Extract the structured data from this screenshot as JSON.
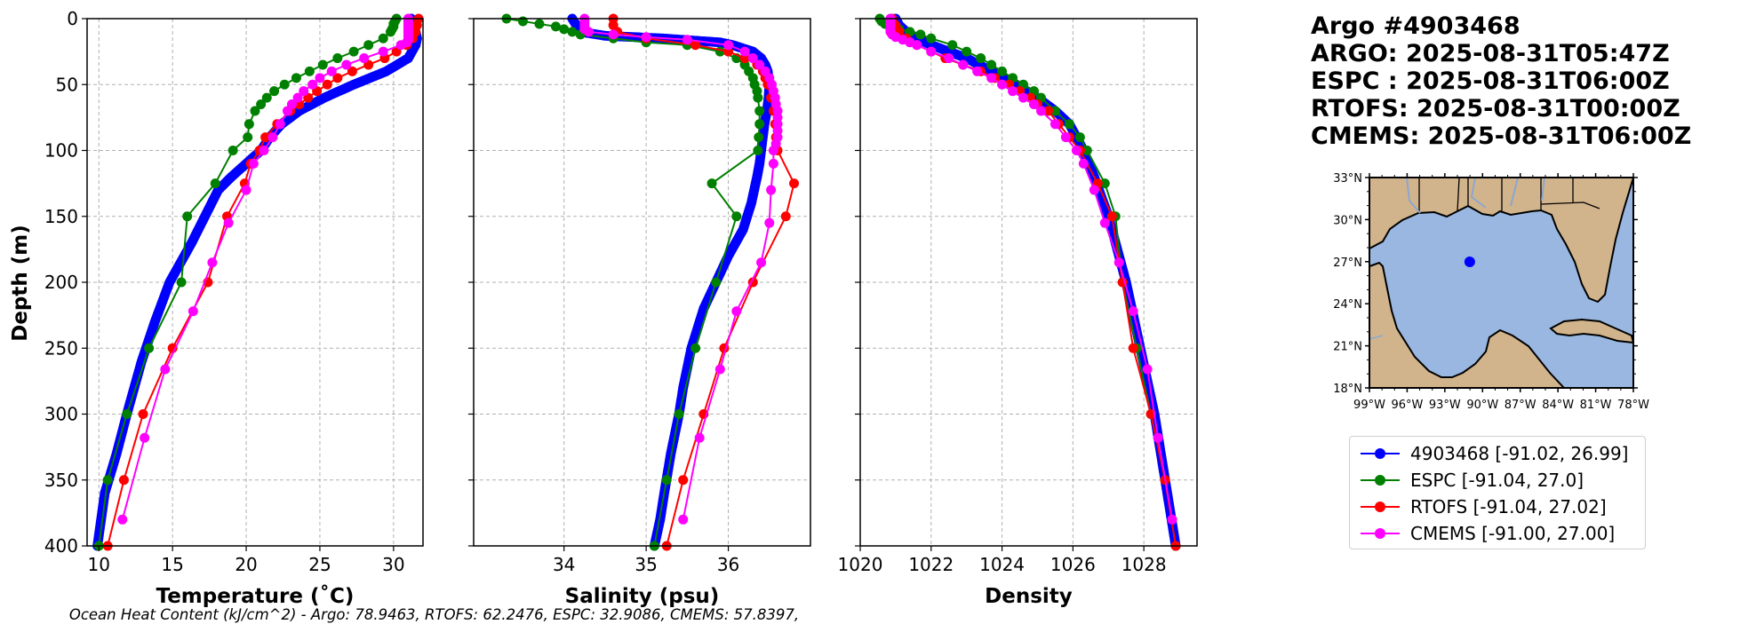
{
  "info": {
    "title": "Argo #4903468",
    "lines": [
      "ARGO: 2025-08-31T05:47Z",
      "ESPC : 2025-08-31T06:00Z",
      "RTOFS: 2025-08-31T00:00Z",
      "CMEMS: 2025-08-31T06:00Z"
    ]
  },
  "footer": {
    "text": "Ocean Heat Content (kJ/cm^2) - Argo: 78.9463,  RTOFS: 62.2476,  ESPC: 32.9086,  CMEMS: 57.8397,"
  },
  "legend": {
    "entries": [
      {
        "label": "4903468 [-91.02, 26.99]",
        "color": "#0000ff"
      },
      {
        "label": "ESPC [-91.04, 27.0]",
        "color": "#008000"
      },
      {
        "label": "RTOFS [-91.04, 27.02]",
        "color": "#ff0000"
      },
      {
        "label": "CMEMS [-91.00, 27.00]",
        "color": "#ff00ff"
      }
    ]
  },
  "chart_data": [
    {
      "type": "line",
      "title": "",
      "xlabel": "Temperature (˚C)",
      "ylabel": "Depth (m)",
      "xlim": [
        9.2,
        32.0
      ],
      "ylim": [
        400,
        0
      ],
      "xticks": [
        10,
        15,
        20,
        25,
        30
      ],
      "yticks": [
        0,
        50,
        100,
        150,
        200,
        250,
        300,
        350,
        400
      ],
      "grid": true,
      "series": [
        {
          "name": "4903468",
          "color": "#0000ff",
          "dense": true,
          "depth": [
            0,
            10,
            15,
            20,
            30,
            40,
            50,
            60,
            70,
            80,
            90,
            100,
            110,
            120,
            130,
            150,
            170,
            200,
            230,
            260,
            300,
            330,
            360,
            400
          ],
          "values": [
            31.2,
            31.5,
            31.6,
            31.5,
            31.0,
            29.5,
            27.3,
            25.3,
            23.6,
            22.4,
            21.6,
            21.0,
            20.0,
            19.0,
            18.1,
            17.2,
            16.3,
            14.8,
            13.8,
            12.9,
            11.9,
            11.2,
            10.4,
            9.9
          ]
        },
        {
          "name": "ESPC",
          "color": "#008000",
          "depth": [
            0,
            2,
            4,
            6,
            8,
            10,
            15,
            20,
            25,
            30,
            35,
            40,
            45,
            50,
            55,
            60,
            65,
            70,
            80,
            90,
            100,
            125,
            150,
            200,
            250,
            300,
            350,
            400
          ],
          "values": [
            30.2,
            30.1,
            30.0,
            30.0,
            29.9,
            29.8,
            29.3,
            28.3,
            27.3,
            26.2,
            25.2,
            24.3,
            23.4,
            22.6,
            21.9,
            21.4,
            21.0,
            20.6,
            20.2,
            20.1,
            19.1,
            17.9,
            16.0,
            15.6,
            13.4,
            11.9,
            10.6,
            10.0
          ]
        },
        {
          "name": "RTOFS",
          "color": "#ff0000",
          "depth": [
            0,
            5,
            10,
            15,
            20,
            25,
            30,
            35,
            40,
            45,
            50,
            55,
            60,
            65,
            70,
            80,
            90,
            100,
            110,
            125,
            150,
            200,
            250,
            300,
            350,
            400
          ],
          "values": [
            31.7,
            31.6,
            31.5,
            31.3,
            30.9,
            30.2,
            29.4,
            28.3,
            27.2,
            26.2,
            25.5,
            24.8,
            24.2,
            23.6,
            23.0,
            22.1,
            21.3,
            20.9,
            20.3,
            19.9,
            18.7,
            17.4,
            15.0,
            13.0,
            11.7,
            10.6
          ]
        },
        {
          "name": "CMEMS",
          "color": "#ff00ff",
          "depth": [
            0,
            2,
            4,
            6,
            8,
            10,
            12,
            14,
            16,
            18,
            20,
            25,
            30,
            35,
            40,
            45,
            50,
            55,
            60,
            65,
            70,
            80,
            90,
            100,
            110,
            130,
            155,
            185,
            222,
            266,
            318,
            380
          ],
          "values": [
            31.0,
            31.0,
            31.0,
            31.0,
            31.0,
            31.0,
            31.0,
            31.0,
            31.0,
            30.9,
            30.5,
            29.3,
            28.0,
            26.8,
            25.8,
            25.0,
            24.5,
            23.9,
            23.5,
            23.1,
            22.8,
            22.3,
            21.8,
            21.2,
            20.5,
            20.0,
            18.8,
            17.7,
            16.4,
            14.5,
            13.1,
            11.6
          ]
        }
      ]
    },
    {
      "type": "line",
      "title": "",
      "xlabel": "Salinity (psu)",
      "ylabel": "",
      "xlim": [
        32.9,
        37.0
      ],
      "ylim": [
        400,
        0
      ],
      "xticks": [
        34,
        35,
        36
      ],
      "yticks": [
        0,
        50,
        100,
        150,
        200,
        250,
        300,
        350,
        400
      ],
      "grid": true,
      "series": [
        {
          "name": "4903468",
          "color": "#0000ff",
          "dense": true,
          "depth": [
            0,
            5,
            10,
            13,
            15,
            18,
            20,
            25,
            30,
            35,
            40,
            50,
            60,
            70,
            80,
            90,
            100,
            110,
            120,
            140,
            160,
            180,
            200,
            220,
            250,
            280,
            300,
            330,
            360,
            380,
            400
          ],
          "values": [
            34.1,
            34.15,
            34.2,
            34.5,
            35.2,
            35.9,
            36.05,
            36.3,
            36.4,
            36.45,
            36.48,
            36.5,
            36.49,
            36.47,
            36.44,
            36.42,
            36.4,
            36.38,
            36.35,
            36.28,
            36.18,
            36.0,
            35.85,
            35.7,
            35.55,
            35.45,
            35.4,
            35.3,
            35.22,
            35.17,
            35.1
          ]
        },
        {
          "name": "ESPC",
          "color": "#008000",
          "depth": [
            0,
            2,
            4,
            6,
            8,
            10,
            12,
            15,
            18,
            20,
            25,
            30,
            35,
            40,
            45,
            50,
            55,
            60,
            70,
            80,
            90,
            100,
            125,
            150,
            200,
            250,
            300,
            350,
            400
          ],
          "values": [
            33.3,
            33.5,
            33.7,
            33.9,
            34.0,
            34.1,
            34.2,
            34.6,
            35.0,
            35.5,
            35.9,
            36.1,
            36.2,
            36.25,
            36.3,
            36.32,
            36.35,
            36.36,
            36.38,
            36.38,
            36.37,
            36.36,
            35.8,
            36.1,
            35.85,
            35.6,
            35.4,
            35.25,
            35.1
          ]
        },
        {
          "name": "RTOFS",
          "color": "#ff0000",
          "depth": [
            0,
            5,
            10,
            15,
            20,
            25,
            30,
            35,
            40,
            45,
            50,
            60,
            70,
            80,
            90,
            100,
            125,
            150,
            200,
            250,
            300,
            350,
            400
          ],
          "values": [
            34.6,
            34.6,
            34.65,
            35.0,
            35.6,
            36.0,
            36.2,
            36.35,
            36.42,
            36.45,
            36.48,
            36.52,
            36.55,
            36.57,
            36.58,
            36.6,
            36.8,
            36.7,
            36.3,
            35.95,
            35.7,
            35.45,
            35.25
          ]
        },
        {
          "name": "CMEMS",
          "color": "#ff00ff",
          "depth": [
            0,
            2,
            4,
            6,
            8,
            10,
            12,
            14,
            16,
            20,
            25,
            30,
            35,
            40,
            45,
            50,
            55,
            60,
            65,
            70,
            75,
            80,
            85,
            90,
            95,
            100,
            110,
            130,
            155,
            185,
            222,
            266,
            318,
            380
          ],
          "values": [
            34.25,
            34.25,
            34.25,
            34.25,
            34.25,
            34.3,
            34.6,
            35.0,
            35.5,
            36.0,
            36.2,
            36.3,
            36.38,
            36.45,
            36.5,
            36.53,
            36.55,
            36.57,
            36.58,
            36.6,
            36.6,
            36.6,
            36.6,
            36.6,
            36.58,
            36.55,
            36.55,
            36.52,
            36.5,
            36.4,
            36.1,
            35.9,
            35.65,
            35.45
          ]
        }
      ]
    },
    {
      "type": "line",
      "title": "",
      "xlabel": "Density",
      "ylabel": "",
      "xlim": [
        1020.0,
        1029.5
      ],
      "ylim": [
        400,
        0
      ],
      "xticks": [
        1020,
        1022,
        1024,
        1026,
        1028
      ],
      "yticks": [
        0,
        50,
        100,
        150,
        200,
        250,
        300,
        350,
        400
      ],
      "grid": true,
      "series": [
        {
          "name": "4903468",
          "color": "#0000ff",
          "dense": true,
          "depth": [
            0,
            5,
            10,
            15,
            20,
            25,
            30,
            40,
            50,
            60,
            70,
            80,
            90,
            100,
            120,
            150,
            180,
            200,
            250,
            300,
            350,
            400
          ],
          "values": [
            1021.0,
            1021.1,
            1021.3,
            1021.6,
            1022.0,
            1022.5,
            1023.0,
            1023.7,
            1024.4,
            1025.0,
            1025.5,
            1025.9,
            1026.1,
            1026.3,
            1026.6,
            1027.0,
            1027.3,
            1027.5,
            1027.9,
            1028.3,
            1028.6,
            1028.9
          ]
        },
        {
          "name": "ESPC",
          "color": "#008000",
          "depth": [
            0,
            2,
            4,
            6,
            8,
            10,
            12,
            15,
            20,
            25,
            30,
            35,
            40,
            45,
            50,
            55,
            60,
            70,
            80,
            90,
            100,
            125,
            150,
            200,
            250,
            300,
            350,
            400
          ],
          "values": [
            1020.55,
            1020.6,
            1020.7,
            1020.9,
            1021.1,
            1021.4,
            1021.7,
            1022.0,
            1022.6,
            1023.0,
            1023.4,
            1023.7,
            1024.0,
            1024.3,
            1024.6,
            1024.9,
            1025.1,
            1025.5,
            1025.9,
            1026.2,
            1026.4,
            1026.9,
            1027.2,
            1027.4,
            1027.8,
            1028.2,
            1028.6,
            1028.9
          ]
        },
        {
          "name": "RTOFS",
          "color": "#ff0000",
          "depth": [
            0,
            5,
            10,
            15,
            20,
            25,
            30,
            35,
            40,
            45,
            50,
            55,
            60,
            65,
            70,
            80,
            90,
            100,
            125,
            150,
            200,
            250,
            300,
            350,
            400
          ],
          "values": [
            1020.9,
            1021.0,
            1021.1,
            1021.3,
            1021.6,
            1022.0,
            1022.4,
            1022.9,
            1023.4,
            1023.8,
            1024.2,
            1024.5,
            1024.8,
            1025.0,
            1025.3,
            1025.6,
            1025.9,
            1026.2,
            1026.7,
            1027.1,
            1027.4,
            1027.7,
            1028.2,
            1028.6,
            1028.9
          ]
        },
        {
          "name": "CMEMS",
          "color": "#ff00ff",
          "depth": [
            0,
            2,
            4,
            6,
            8,
            10,
            12,
            14,
            16,
            18,
            20,
            25,
            30,
            35,
            40,
            45,
            50,
            55,
            60,
            65,
            70,
            80,
            90,
            100,
            110,
            130,
            155,
            185,
            222,
            266,
            318,
            380
          ],
          "values": [
            1020.85,
            1020.85,
            1020.85,
            1020.85,
            1020.85,
            1020.85,
            1020.9,
            1021.0,
            1021.2,
            1021.4,
            1021.6,
            1022.0,
            1022.5,
            1022.9,
            1023.3,
            1023.7,
            1024.0,
            1024.3,
            1024.6,
            1024.9,
            1025.1,
            1025.5,
            1025.8,
            1026.1,
            1026.3,
            1026.6,
            1026.9,
            1027.3,
            1027.7,
            1028.1,
            1028.4,
            1028.8
          ]
        }
      ]
    }
  ],
  "map": {
    "lon_ticks": [
      "99°W",
      "96°W",
      "93°W",
      "90°W",
      "87°W",
      "84°W",
      "81°W",
      "78°W"
    ],
    "lat_ticks": [
      "33°N",
      "30°N",
      "27°N",
      "24°N",
      "21°N",
      "18°N"
    ],
    "lon_values": [
      -99,
      -96,
      -93,
      -90,
      -87,
      -84,
      -81,
      -78
    ],
    "lat_values": [
      33,
      30,
      27,
      24,
      21,
      18
    ],
    "extent": {
      "lon_min": -99,
      "lon_max": -78,
      "lat_min": 18,
      "lat_max": 33
    },
    "marker": {
      "lon": -91.02,
      "lat": 26.99,
      "color": "#0000ff"
    },
    "land_color": "#d2b48c",
    "ocean_color": "#99b7e0"
  }
}
